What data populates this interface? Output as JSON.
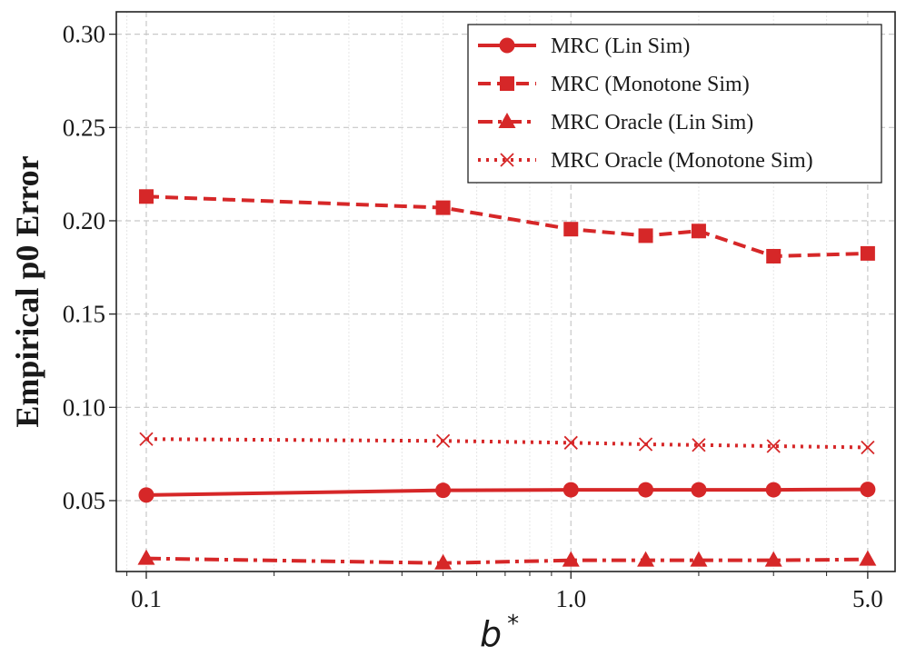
{
  "chart_data": {
    "type": "line",
    "xscale": "log",
    "x": [
      0.1,
      0.5,
      1.0,
      1.5,
      2.0,
      3.0,
      5.0
    ],
    "xlim": [
      0.085,
      5.8
    ],
    "ylim": [
      0.012,
      0.312
    ],
    "xticks": [
      0.1,
      1.0,
      5.0
    ],
    "xtick_labels": [
      "0.1",
      "1.0",
      "5.0"
    ],
    "yticks": [
      0.05,
      0.1,
      0.15,
      0.2,
      0.25,
      0.3
    ],
    "ytick_labels": [
      "0.05",
      "0.10",
      "0.15",
      "0.20",
      "0.25",
      "0.30"
    ],
    "ylabel": "Empirical p0 Error",
    "xlabel": "b",
    "xlabel_sup": "*",
    "grid": true,
    "legend_position": "top-right",
    "color": "#d62728",
    "series": [
      {
        "name": "MRC (Lin Sim)",
        "style": "solid",
        "marker": "circle",
        "values": [
          0.053,
          0.0555,
          0.0558,
          0.0558,
          0.0558,
          0.0558,
          0.056
        ]
      },
      {
        "name": "MRC (Monotone Sim)",
        "style": "dashed",
        "marker": "square",
        "values": [
          0.213,
          0.207,
          0.1955,
          0.192,
          0.1945,
          0.181,
          0.1825
        ]
      },
      {
        "name": "MRC Oracle (Lin Sim)",
        "style": "dashdot",
        "marker": "triangle",
        "values": [
          0.019,
          0.0165,
          0.018,
          0.018,
          0.018,
          0.018,
          0.0185
        ]
      },
      {
        "name": "MRC Oracle (Monotone Sim)",
        "style": "dotted",
        "marker": "x",
        "values": [
          0.083,
          0.082,
          0.081,
          0.0802,
          0.0798,
          0.0792,
          0.0785
        ]
      }
    ]
  }
}
